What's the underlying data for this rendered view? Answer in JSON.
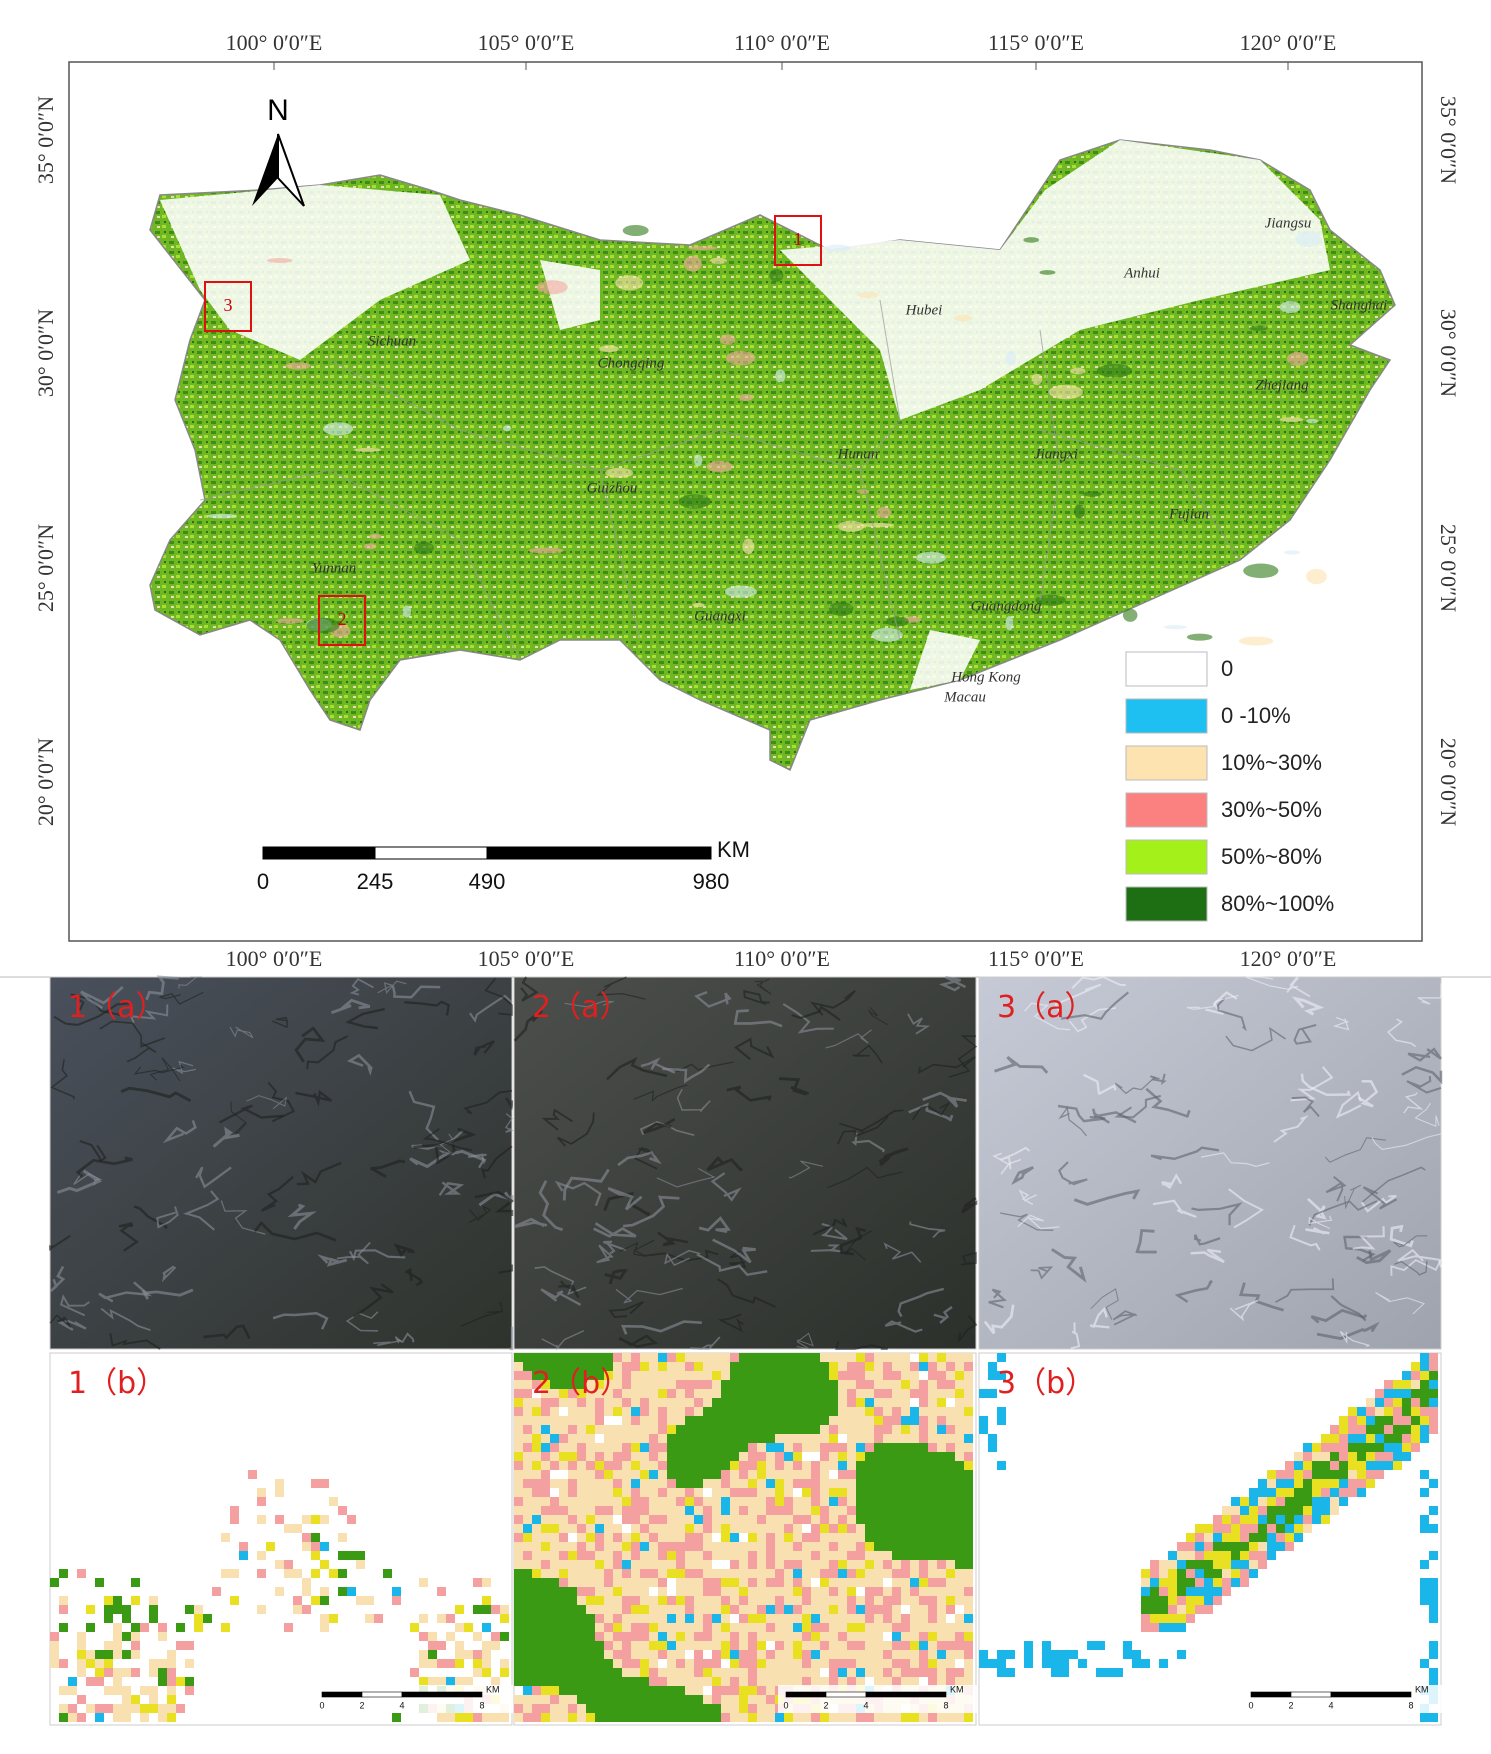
{
  "map": {
    "longitude_labels": [
      "100° 0′0″E",
      "105° 0′0″E",
      "110° 0′0″E",
      "115° 0′0″E",
      "120° 0′0″E"
    ],
    "latitude_labels": [
      "35° 0′0″N",
      "30° 0′0″N",
      "25° 0′0″N",
      "20° 0′0″N"
    ],
    "north": "N",
    "province_labels": [
      "Jiangsu",
      "Anhui",
      "Shanghai",
      "Hubei",
      "Sichuan",
      "Chongqing",
      "Zhejiang",
      "Hunan",
      "Jiangxi",
      "Guizhou",
      "Fujian",
      "Yunnan",
      "Guangxi",
      "Guangdong",
      "Hong Kong",
      "Macau"
    ],
    "study_areas": [
      "1",
      "2",
      "3"
    ],
    "scale_bar": {
      "ticks": [
        0,
        245,
        490,
        980
      ],
      "unit": "KM"
    },
    "legend": [
      {
        "label": "0",
        "color": "#ffffff"
      },
      {
        "label": "0 -10%",
        "color": "#1ec0f2"
      },
      {
        "label": "10%~30%",
        "color": "#fde3b0"
      },
      {
        "label": "30%~50%",
        "color": "#fb8080"
      },
      {
        "label": "50%~80%",
        "color": "#a4f01a"
      },
      {
        "label": "80%~100%",
        "color": "#1e6e14"
      }
    ]
  },
  "panels": {
    "a": [
      "1（a）",
      "2（a）",
      "3（a）"
    ],
    "b": [
      "1（b）",
      "2（b）",
      "3（b）"
    ],
    "mini_scale_bar": {
      "ticks": [
        0,
        2,
        4,
        8
      ],
      "unit": "KM"
    }
  }
}
